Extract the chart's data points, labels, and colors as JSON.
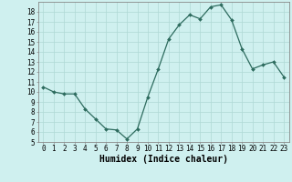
{
  "x": [
    0,
    1,
    2,
    3,
    4,
    5,
    6,
    7,
    8,
    9,
    10,
    11,
    12,
    13,
    14,
    15,
    16,
    17,
    18,
    19,
    20,
    21,
    22,
    23
  ],
  "y": [
    10.5,
    10.0,
    9.8,
    9.8,
    8.3,
    7.3,
    6.3,
    6.2,
    5.3,
    6.3,
    9.5,
    12.3,
    15.3,
    16.7,
    17.7,
    17.3,
    18.5,
    18.7,
    17.2,
    14.3,
    12.3,
    12.7,
    13.0,
    11.5
  ],
  "line_color": "#2d6b5e",
  "marker": "D",
  "marker_size": 2.0,
  "bg_color": "#cff0ef",
  "grid_color": "#aed8d5",
  "xlabel": "Humidex (Indice chaleur)",
  "ylim": [
    5,
    19
  ],
  "xlim": [
    -0.5,
    23.5
  ],
  "yticks": [
    5,
    6,
    7,
    8,
    9,
    10,
    11,
    12,
    13,
    14,
    15,
    16,
    17,
    18
  ],
  "xticks": [
    0,
    1,
    2,
    3,
    4,
    5,
    6,
    7,
    8,
    9,
    10,
    11,
    12,
    13,
    14,
    15,
    16,
    17,
    18,
    19,
    20,
    21,
    22,
    23
  ],
  "tick_fontsize": 5.5,
  "label_fontsize": 7.0
}
